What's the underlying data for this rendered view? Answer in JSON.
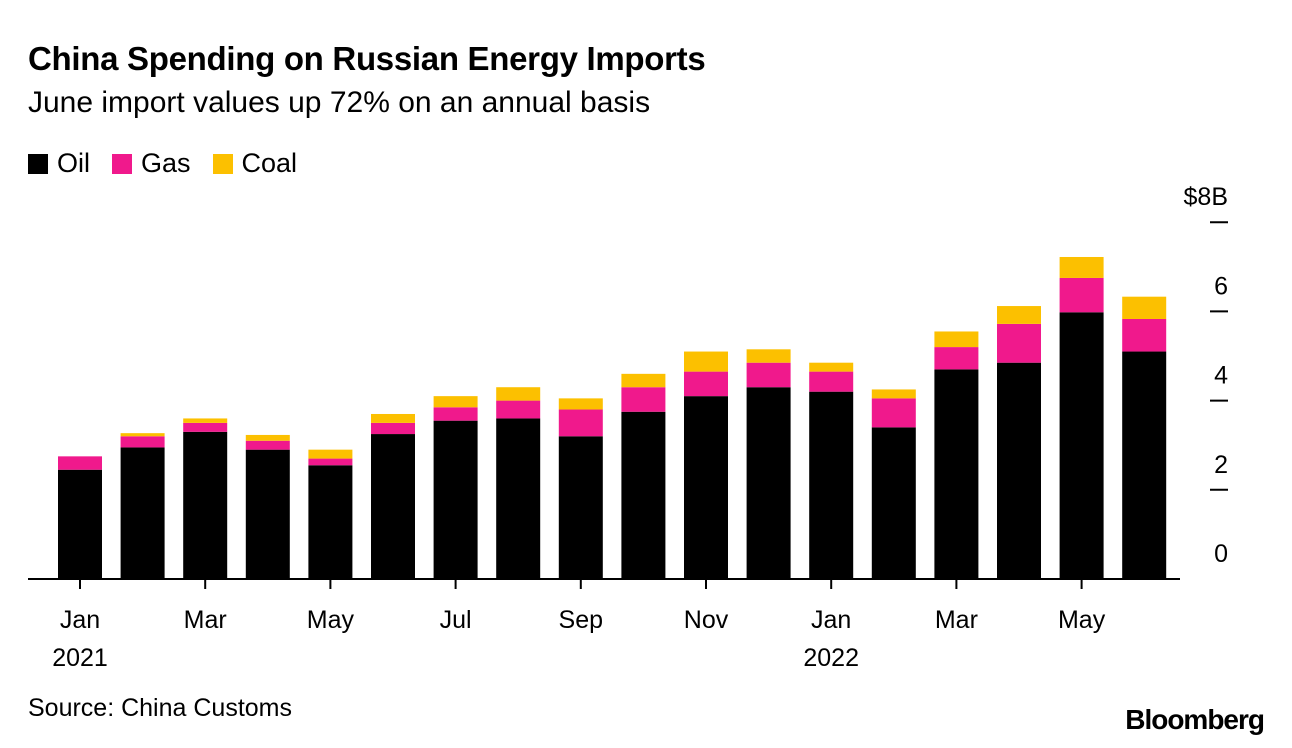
{
  "title": "China Spending on Russian Energy Imports",
  "subtitle": "June import values up 72% on an annual basis",
  "legend": [
    {
      "label": "Oil",
      "color": "#000000"
    },
    {
      "label": "Gas",
      "color": "#f0198c"
    },
    {
      "label": "Coal",
      "color": "#fcc000"
    }
  ],
  "source": "Source: China Customs",
  "brand": "Bloomberg",
  "chart_data": {
    "type": "bar",
    "stacked": true,
    "title": "China Spending on Russian Energy Imports",
    "subtitle": "June import values up 72% on an annual basis",
    "ylabel": "$B",
    "ylim": [
      0,
      8
    ],
    "y_ticks": [
      "0",
      "2",
      "4",
      "6",
      "$8B"
    ],
    "y_tick_values": [
      0,
      2,
      4,
      6,
      8
    ],
    "categories": [
      "Jan 2021",
      "Feb 2021",
      "Mar 2021",
      "Apr 2021",
      "May 2021",
      "Jun 2021",
      "Jul 2021",
      "Aug 2021",
      "Sep 2021",
      "Oct 2021",
      "Nov 2021",
      "Dec 2021",
      "Jan 2022",
      "Feb 2022",
      "Mar 2022",
      "Apr 2022",
      "May 2022",
      "Jun 2022"
    ],
    "x_tick_labels": [
      {
        "index": 0,
        "line1": "Jan",
        "line2": "2021"
      },
      {
        "index": 2,
        "line1": "Mar",
        "line2": ""
      },
      {
        "index": 4,
        "line1": "May",
        "line2": ""
      },
      {
        "index": 6,
        "line1": "Jul",
        "line2": ""
      },
      {
        "index": 8,
        "line1": "Sep",
        "line2": ""
      },
      {
        "index": 10,
        "line1": "Nov",
        "line2": ""
      },
      {
        "index": 12,
        "line1": "Jan",
        "line2": "2022"
      },
      {
        "index": 14,
        "line1": "Mar",
        "line2": ""
      },
      {
        "index": 16,
        "line1": "May",
        "line2": ""
      }
    ],
    "series": [
      {
        "name": "Oil",
        "color": "#000000",
        "values": [
          2.45,
          2.95,
          3.3,
          2.9,
          2.55,
          3.25,
          3.55,
          3.6,
          3.2,
          3.75,
          4.1,
          4.3,
          4.2,
          3.4,
          4.7,
          4.85,
          5.98,
          5.1
        ]
      },
      {
        "name": "Gas",
        "color": "#f0198c",
        "values": [
          0.3,
          0.25,
          0.2,
          0.2,
          0.15,
          0.25,
          0.3,
          0.4,
          0.6,
          0.55,
          0.55,
          0.55,
          0.45,
          0.65,
          0.5,
          0.87,
          0.77,
          0.73
        ]
      },
      {
        "name": "Coal",
        "color": "#fcc000",
        "values": [
          0.0,
          0.07,
          0.1,
          0.13,
          0.2,
          0.2,
          0.25,
          0.3,
          0.25,
          0.3,
          0.45,
          0.3,
          0.2,
          0.2,
          0.35,
          0.4,
          0.47,
          0.5
        ]
      }
    ]
  }
}
